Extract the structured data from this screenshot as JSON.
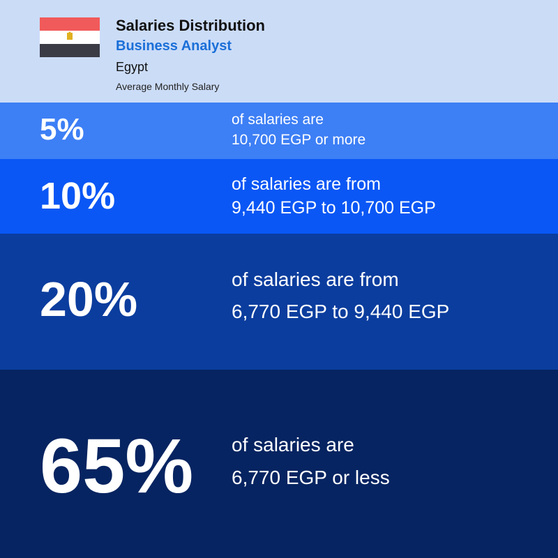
{
  "header": {
    "title": "Salaries Distribution",
    "job": "Business Analyst",
    "country": "Egypt",
    "subtitle": "Average Monthly Salary"
  },
  "bands": [
    {
      "percent": "5%",
      "line1": "of salaries are",
      "line2": "10,700 EGP or more"
    },
    {
      "percent": "10%",
      "line1": "of salaries are from",
      "line2": "9,440 EGP to 10,700 EGP"
    },
    {
      "percent": "20%",
      "line1": "of salaries are from",
      "line2": "6,770 EGP to 9,440 EGP"
    },
    {
      "percent": "65%",
      "line1": "of salaries are",
      "line2": "6,770 EGP or less"
    }
  ]
}
